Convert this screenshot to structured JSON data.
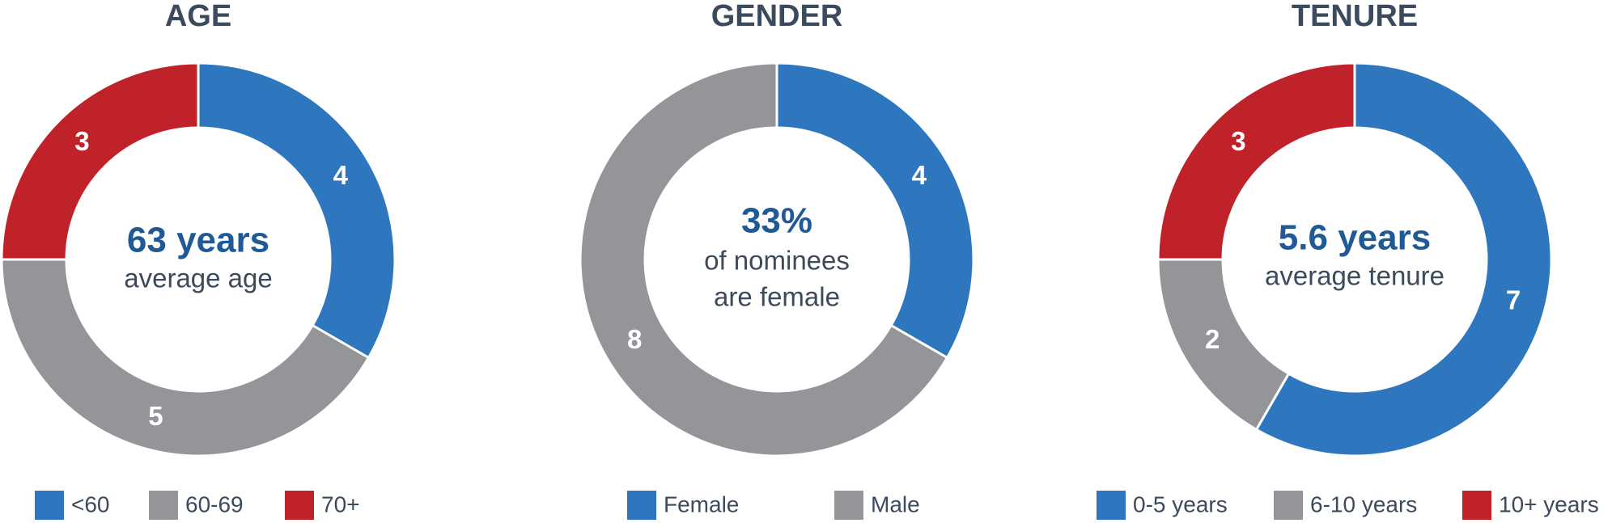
{
  "chart_data": [
    {
      "type": "donut",
      "title": "AGE",
      "categories": [
        "<60",
        "60-69",
        "70+"
      ],
      "values": [
        4,
        5,
        3
      ],
      "colors": [
        "#2e77bf",
        "#939598",
        "#c0222a"
      ],
      "center_text": [
        "63 years",
        "average age"
      ]
    },
    {
      "type": "donut",
      "title": "GENDER",
      "categories": [
        "Female",
        "Male"
      ],
      "values": [
        4,
        8
      ],
      "colors": [
        "#2e77bf",
        "#939598"
      ],
      "center_text": [
        "33%",
        "of nominees",
        "are female"
      ]
    },
    {
      "type": "donut",
      "title": "TENURE",
      "categories": [
        "0-5 years",
        "6-10 years",
        "10+ years"
      ],
      "values": [
        7,
        2,
        3
      ],
      "colors": [
        "#2e77bf",
        "#939598",
        "#c0222a"
      ],
      "center_text": [
        "5.6 years",
        "average tenure"
      ]
    }
  ]
}
